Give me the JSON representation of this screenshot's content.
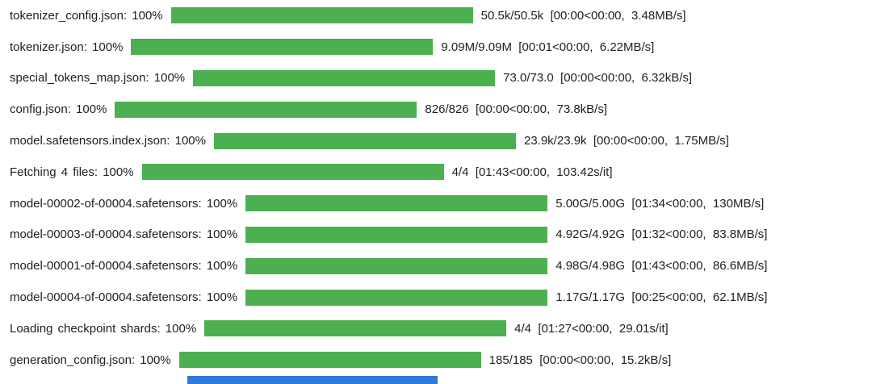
{
  "colors": {
    "bar_complete": "#4caf50",
    "bar_in_progress": "#2e7bd9",
    "text": "#202124",
    "background": "#ffffff"
  },
  "rows": [
    {
      "label": "tokenizer_config.json:",
      "percent": "100%",
      "progress_percent": 100,
      "stats": "50.5k/50.5k  [00:00<00:00,  3.48MB/s]"
    },
    {
      "label": "tokenizer.json:",
      "percent": "100%",
      "progress_percent": 100,
      "stats": "9.09M/9.09M  [00:01<00:00,  6.22MB/s]"
    },
    {
      "label": "special_tokens_map.json:",
      "percent": "100%",
      "progress_percent": 100,
      "stats": "73.0/73.0  [00:00<00:00,  6.32kB/s]"
    },
    {
      "label": "config.json:",
      "percent": "100%",
      "progress_percent": 100,
      "stats": "826/826  [00:00<00:00,  73.8kB/s]"
    },
    {
      "label": "model.safetensors.index.json:",
      "percent": "100%",
      "progress_percent": 100,
      "stats": "23.9k/23.9k  [00:00<00:00,  1.75MB/s]"
    },
    {
      "label": "Fetching 4 files:",
      "percent": "100%",
      "progress_percent": 100,
      "stats": "4/4  [01:43<00:00,  103.42s/it]"
    },
    {
      "label": "model-00002-of-00004.safetensors:",
      "percent": "100%",
      "progress_percent": 100,
      "stats": "5.00G/5.00G  [01:34<00:00,  130MB/s]"
    },
    {
      "label": "model-00003-of-00004.safetensors:",
      "percent": "100%",
      "progress_percent": 100,
      "stats": "4.92G/4.92G  [01:32<00:00,  83.8MB/s]"
    },
    {
      "label": "model-00001-of-00004.safetensors:",
      "percent": "100%",
      "progress_percent": 100,
      "stats": "4.98G/4.98G  [01:43<00:00,  86.6MB/s]"
    },
    {
      "label": "model-00004-of-00004.safetensors:",
      "percent": "100%",
      "progress_percent": 100,
      "stats": "1.17G/1.17G  [00:25<00:00,  62.1MB/s]"
    },
    {
      "label": "Loading checkpoint shards:",
      "percent": "100%",
      "progress_percent": 100,
      "stats": "4/4  [01:27<00:00,  29.01s/it]"
    },
    {
      "label": "generation_config.json:",
      "percent": "100%",
      "progress_percent": 100,
      "stats": "185/185  [00:00<00:00,  15.2kB/s]"
    }
  ],
  "partial_bar": {
    "progress_percent": 83
  }
}
